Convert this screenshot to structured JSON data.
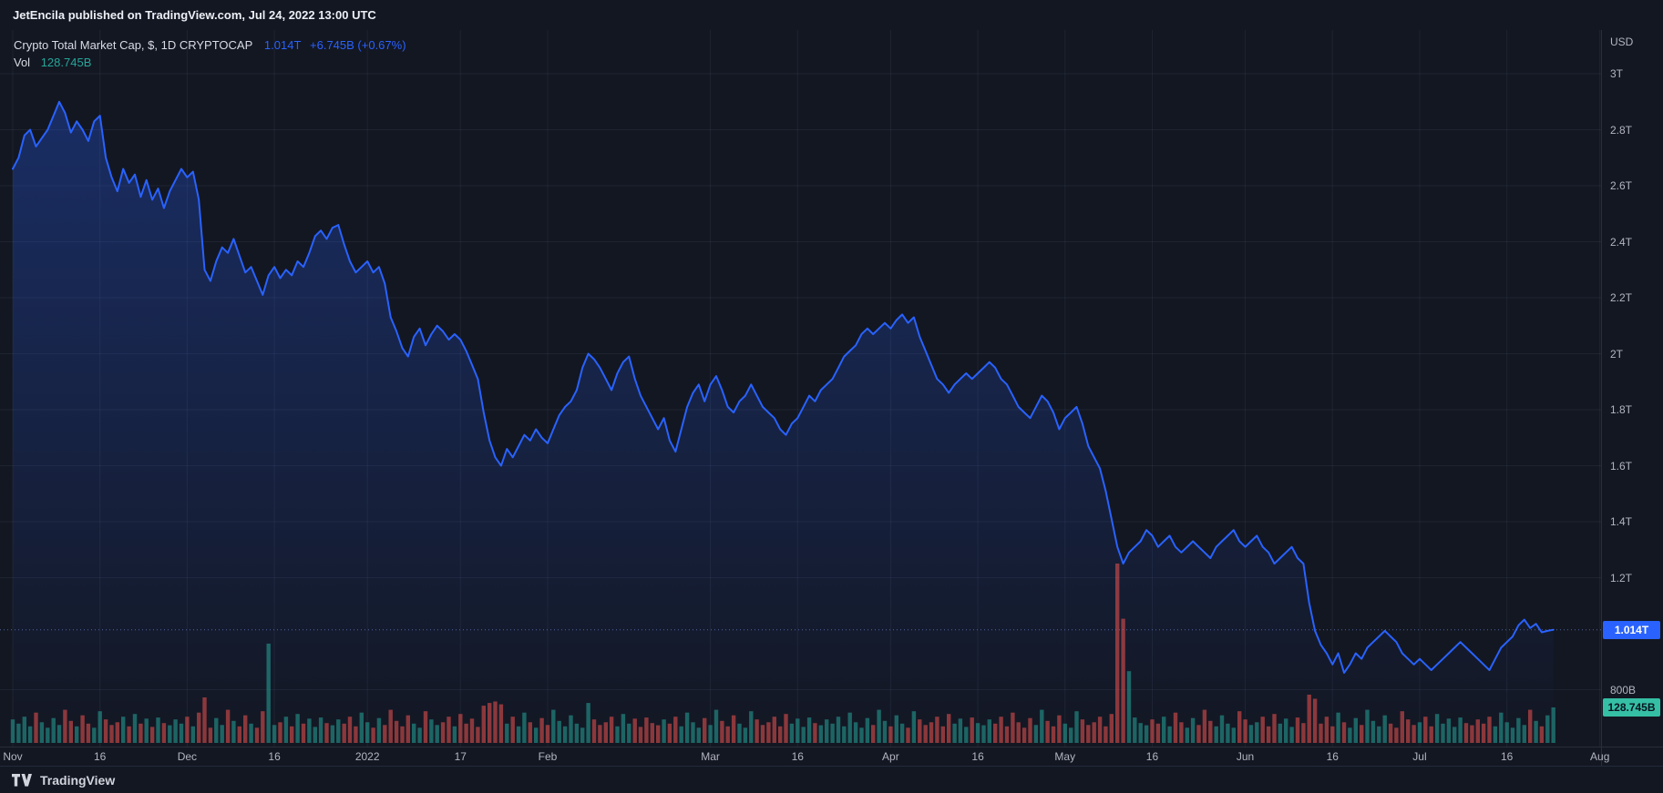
{
  "top_bar": {
    "text": "JetEncila published on TradingView.com, Jul 24, 2022 13:00 UTC"
  },
  "legend": {
    "title": "Crypto Total Market Cap, $, 1D CRYPTOCAP",
    "price": "1.014T",
    "change": "+6.745B (+0.67%)",
    "vol_label": "Vol",
    "vol_value": "128.745B"
  },
  "price_axis": {
    "currency_label": "USD",
    "ticks": [
      {
        "label": "3T",
        "value": 3.0
      },
      {
        "label": "2.8T",
        "value": 2.8
      },
      {
        "label": "2.6T",
        "value": 2.6
      },
      {
        "label": "2.4T",
        "value": 2.4
      },
      {
        "label": "2.2T",
        "value": 2.2
      },
      {
        "label": "2T",
        "value": 2.0
      },
      {
        "label": "1.8T",
        "value": 1.8
      },
      {
        "label": "1.6T",
        "value": 1.6
      },
      {
        "label": "1.4T",
        "value": 1.4
      },
      {
        "label": "1.2T",
        "value": 1.2
      },
      {
        "label": "800B",
        "value": 0.8
      }
    ],
    "price_badge": {
      "label": "1.014T",
      "value": 1.014
    },
    "volume_badge": {
      "label": "128.745B",
      "value": 128.745
    }
  },
  "time_axis": {
    "ticks": [
      {
        "label": "Nov",
        "day": 0
      },
      {
        "label": "16",
        "day": 15
      },
      {
        "label": "Dec",
        "day": 30
      },
      {
        "label": "16",
        "day": 45
      },
      {
        "label": "2022",
        "day": 61
      },
      {
        "label": "17",
        "day": 77
      },
      {
        "label": "Feb",
        "day": 92
      },
      {
        "label": "Mar",
        "day": 120
      },
      {
        "label": "16",
        "day": 135
      },
      {
        "label": "Apr",
        "day": 151
      },
      {
        "label": "16",
        "day": 166
      },
      {
        "label": "May",
        "day": 181
      },
      {
        "label": "16",
        "day": 196
      },
      {
        "label": "Jun",
        "day": 212
      },
      {
        "label": "16",
        "day": 227
      },
      {
        "label": "Jul",
        "day": 242
      },
      {
        "label": "16",
        "day": 257
      },
      {
        "label": "Aug",
        "day": 273
      }
    ]
  },
  "footer": {
    "brand": "TradingView"
  },
  "colors": {
    "background": "#131722",
    "grid": "rgba(130,145,180,0.10)",
    "axis_border": "#2a2e39",
    "axis_text": "#b2b5be",
    "line": "#2962ff",
    "area_top": "rgba(41,98,255,0.30)",
    "area_bottom": "rgba(41,98,255,0)",
    "volume_up": "rgba(38,166,154,0.55)",
    "volume_down": "rgba(239,83,80,0.55)",
    "price_line_dotted": "rgba(110,140,220,0.65)",
    "price_badge_bg": "#2962ff",
    "volume_badge_bg": "#35bfa4",
    "legend_value_blue": "#2962ff",
    "legend_vol_teal": "#26a69a"
  },
  "chart_data": {
    "type": "area",
    "title": "Crypto Total Market Cap, $, 1D CRYPTOCAP",
    "symbol": "CRYPTOCAP",
    "interval": "1D",
    "xlabel": "",
    "ylabel": "USD",
    "x_unit": "days since 2021-11-01 (one value per day)",
    "x_range_days": [
      0,
      273
    ],
    "y_unit": "USD trillions",
    "ylim": [
      0.8,
      3.0
    ],
    "grid": true,
    "legend_position": "top-left",
    "last_price": 1.014,
    "last_volume": 128.745,
    "series": [
      {
        "name": "Total crypto market cap (T USD, daily close)",
        "daily_values": [
          2.66,
          2.7,
          2.78,
          2.8,
          2.74,
          2.77,
          2.8,
          2.85,
          2.9,
          2.86,
          2.79,
          2.83,
          2.8,
          2.76,
          2.83,
          2.85,
          2.7,
          2.63,
          2.58,
          2.66,
          2.61,
          2.64,
          2.56,
          2.62,
          2.55,
          2.59,
          2.52,
          2.58,
          2.62,
          2.66,
          2.63,
          2.65,
          2.55,
          2.3,
          2.26,
          2.33,
          2.38,
          2.36,
          2.41,
          2.35,
          2.29,
          2.31,
          2.26,
          2.21,
          2.28,
          2.31,
          2.27,
          2.3,
          2.28,
          2.33,
          2.31,
          2.36,
          2.42,
          2.44,
          2.41,
          2.45,
          2.46,
          2.39,
          2.33,
          2.29,
          2.31,
          2.33,
          2.29,
          2.31,
          2.25,
          2.13,
          2.08,
          2.02,
          1.99,
          2.06,
          2.09,
          2.03,
          2.07,
          2.1,
          2.08,
          2.05,
          2.07,
          2.05,
          2.01,
          1.96,
          1.91,
          1.79,
          1.69,
          1.63,
          1.6,
          1.66,
          1.63,
          1.67,
          1.71,
          1.69,
          1.73,
          1.7,
          1.68,
          1.73,
          1.78,
          1.81,
          1.83,
          1.87,
          1.95,
          2.0,
          1.98,
          1.95,
          1.91,
          1.87,
          1.93,
          1.97,
          1.99,
          1.91,
          1.85,
          1.81,
          1.77,
          1.73,
          1.77,
          1.69,
          1.65,
          1.73,
          1.81,
          1.86,
          1.89,
          1.83,
          1.89,
          1.92,
          1.87,
          1.81,
          1.79,
          1.83,
          1.85,
          1.89,
          1.85,
          1.81,
          1.79,
          1.77,
          1.73,
          1.71,
          1.75,
          1.77,
          1.81,
          1.85,
          1.83,
          1.87,
          1.89,
          1.91,
          1.95,
          1.99,
          2.01,
          2.03,
          2.07,
          2.09,
          2.07,
          2.09,
          2.11,
          2.09,
          2.12,
          2.14,
          2.11,
          2.13,
          2.06,
          2.01,
          1.96,
          1.91,
          1.89,
          1.86,
          1.89,
          1.91,
          1.93,
          1.91,
          1.93,
          1.95,
          1.97,
          1.95,
          1.91,
          1.89,
          1.85,
          1.81,
          1.79,
          1.77,
          1.81,
          1.85,
          1.83,
          1.79,
          1.73,
          1.77,
          1.79,
          1.81,
          1.75,
          1.67,
          1.63,
          1.59,
          1.51,
          1.41,
          1.31,
          1.25,
          1.29,
          1.31,
          1.33,
          1.37,
          1.35,
          1.31,
          1.33,
          1.35,
          1.31,
          1.29,
          1.31,
          1.33,
          1.31,
          1.29,
          1.27,
          1.31,
          1.33,
          1.35,
          1.37,
          1.33,
          1.31,
          1.33,
          1.35,
          1.31,
          1.29,
          1.25,
          1.27,
          1.29,
          1.31,
          1.27,
          1.25,
          1.11,
          1.01,
          0.96,
          0.93,
          0.89,
          0.93,
          0.86,
          0.89,
          0.93,
          0.91,
          0.95,
          0.97,
          0.99,
          1.01,
          0.99,
          0.97,
          0.93,
          0.91,
          0.89,
          0.91,
          0.89,
          0.87,
          0.89,
          0.91,
          0.93,
          0.95,
          0.97,
          0.95,
          0.93,
          0.91,
          0.89,
          0.87,
          0.91,
          0.95,
          0.97,
          0.99,
          1.03,
          1.05,
          1.02,
          1.035,
          1.005,
          1.01,
          1.014
        ]
      }
    ],
    "volume": {
      "name": "Vol (B USD, daily)",
      "unit": "USD billions",
      "estimated_max_b": 660,
      "daily_values": [
        85,
        70,
        95,
        60,
        110,
        75,
        55,
        90,
        65,
        120,
        80,
        60,
        100,
        70,
        55,
        115,
        85,
        65,
        75,
        95,
        60,
        105,
        70,
        88,
        58,
        92,
        72,
        64,
        85,
        70,
        95,
        60,
        110,
        165,
        55,
        90,
        65,
        120,
        80,
        60,
        100,
        70,
        55,
        115,
        360,
        65,
        75,
        95,
        60,
        105,
        70,
        88,
        58,
        92,
        72,
        64,
        85,
        70,
        95,
        60,
        110,
        75,
        55,
        90,
        65,
        120,
        80,
        60,
        100,
        70,
        55,
        115,
        85,
        65,
        75,
        95,
        60,
        105,
        70,
        88,
        58,
        135,
        145,
        150,
        140,
        70,
        95,
        60,
        110,
        75,
        55,
        90,
        65,
        120,
        80,
        60,
        100,
        70,
        55,
        145,
        85,
        65,
        75,
        95,
        60,
        105,
        70,
        88,
        58,
        92,
        72,
        64,
        85,
        70,
        95,
        60,
        110,
        75,
        55,
        90,
        65,
        120,
        80,
        60,
        100,
        70,
        55,
        115,
        85,
        65,
        75,
        95,
        60,
        105,
        70,
        88,
        58,
        92,
        72,
        64,
        85,
        70,
        95,
        60,
        110,
        75,
        55,
        90,
        65,
        120,
        80,
        60,
        100,
        70,
        55,
        115,
        85,
        65,
        75,
        95,
        60,
        105,
        70,
        88,
        58,
        92,
        72,
        64,
        85,
        70,
        95,
        60,
        110,
        75,
        55,
        90,
        65,
        120,
        80,
        60,
        100,
        70,
        55,
        115,
        85,
        65,
        75,
        95,
        60,
        105,
        650,
        450,
        260,
        92,
        72,
        64,
        85,
        70,
        95,
        60,
        110,
        75,
        55,
        90,
        65,
        120,
        80,
        60,
        100,
        70,
        55,
        115,
        85,
        65,
        75,
        95,
        60,
        105,
        70,
        88,
        58,
        92,
        72,
        175,
        160,
        70,
        95,
        60,
        110,
        75,
        55,
        90,
        65,
        120,
        80,
        60,
        100,
        70,
        55,
        115,
        85,
        65,
        75,
        95,
        60,
        105,
        70,
        88,
        58,
        92,
        72,
        64,
        85,
        70,
        95,
        60,
        110,
        75,
        55,
        90,
        65,
        120,
        80,
        60,
        100,
        128.745
      ]
    }
  }
}
